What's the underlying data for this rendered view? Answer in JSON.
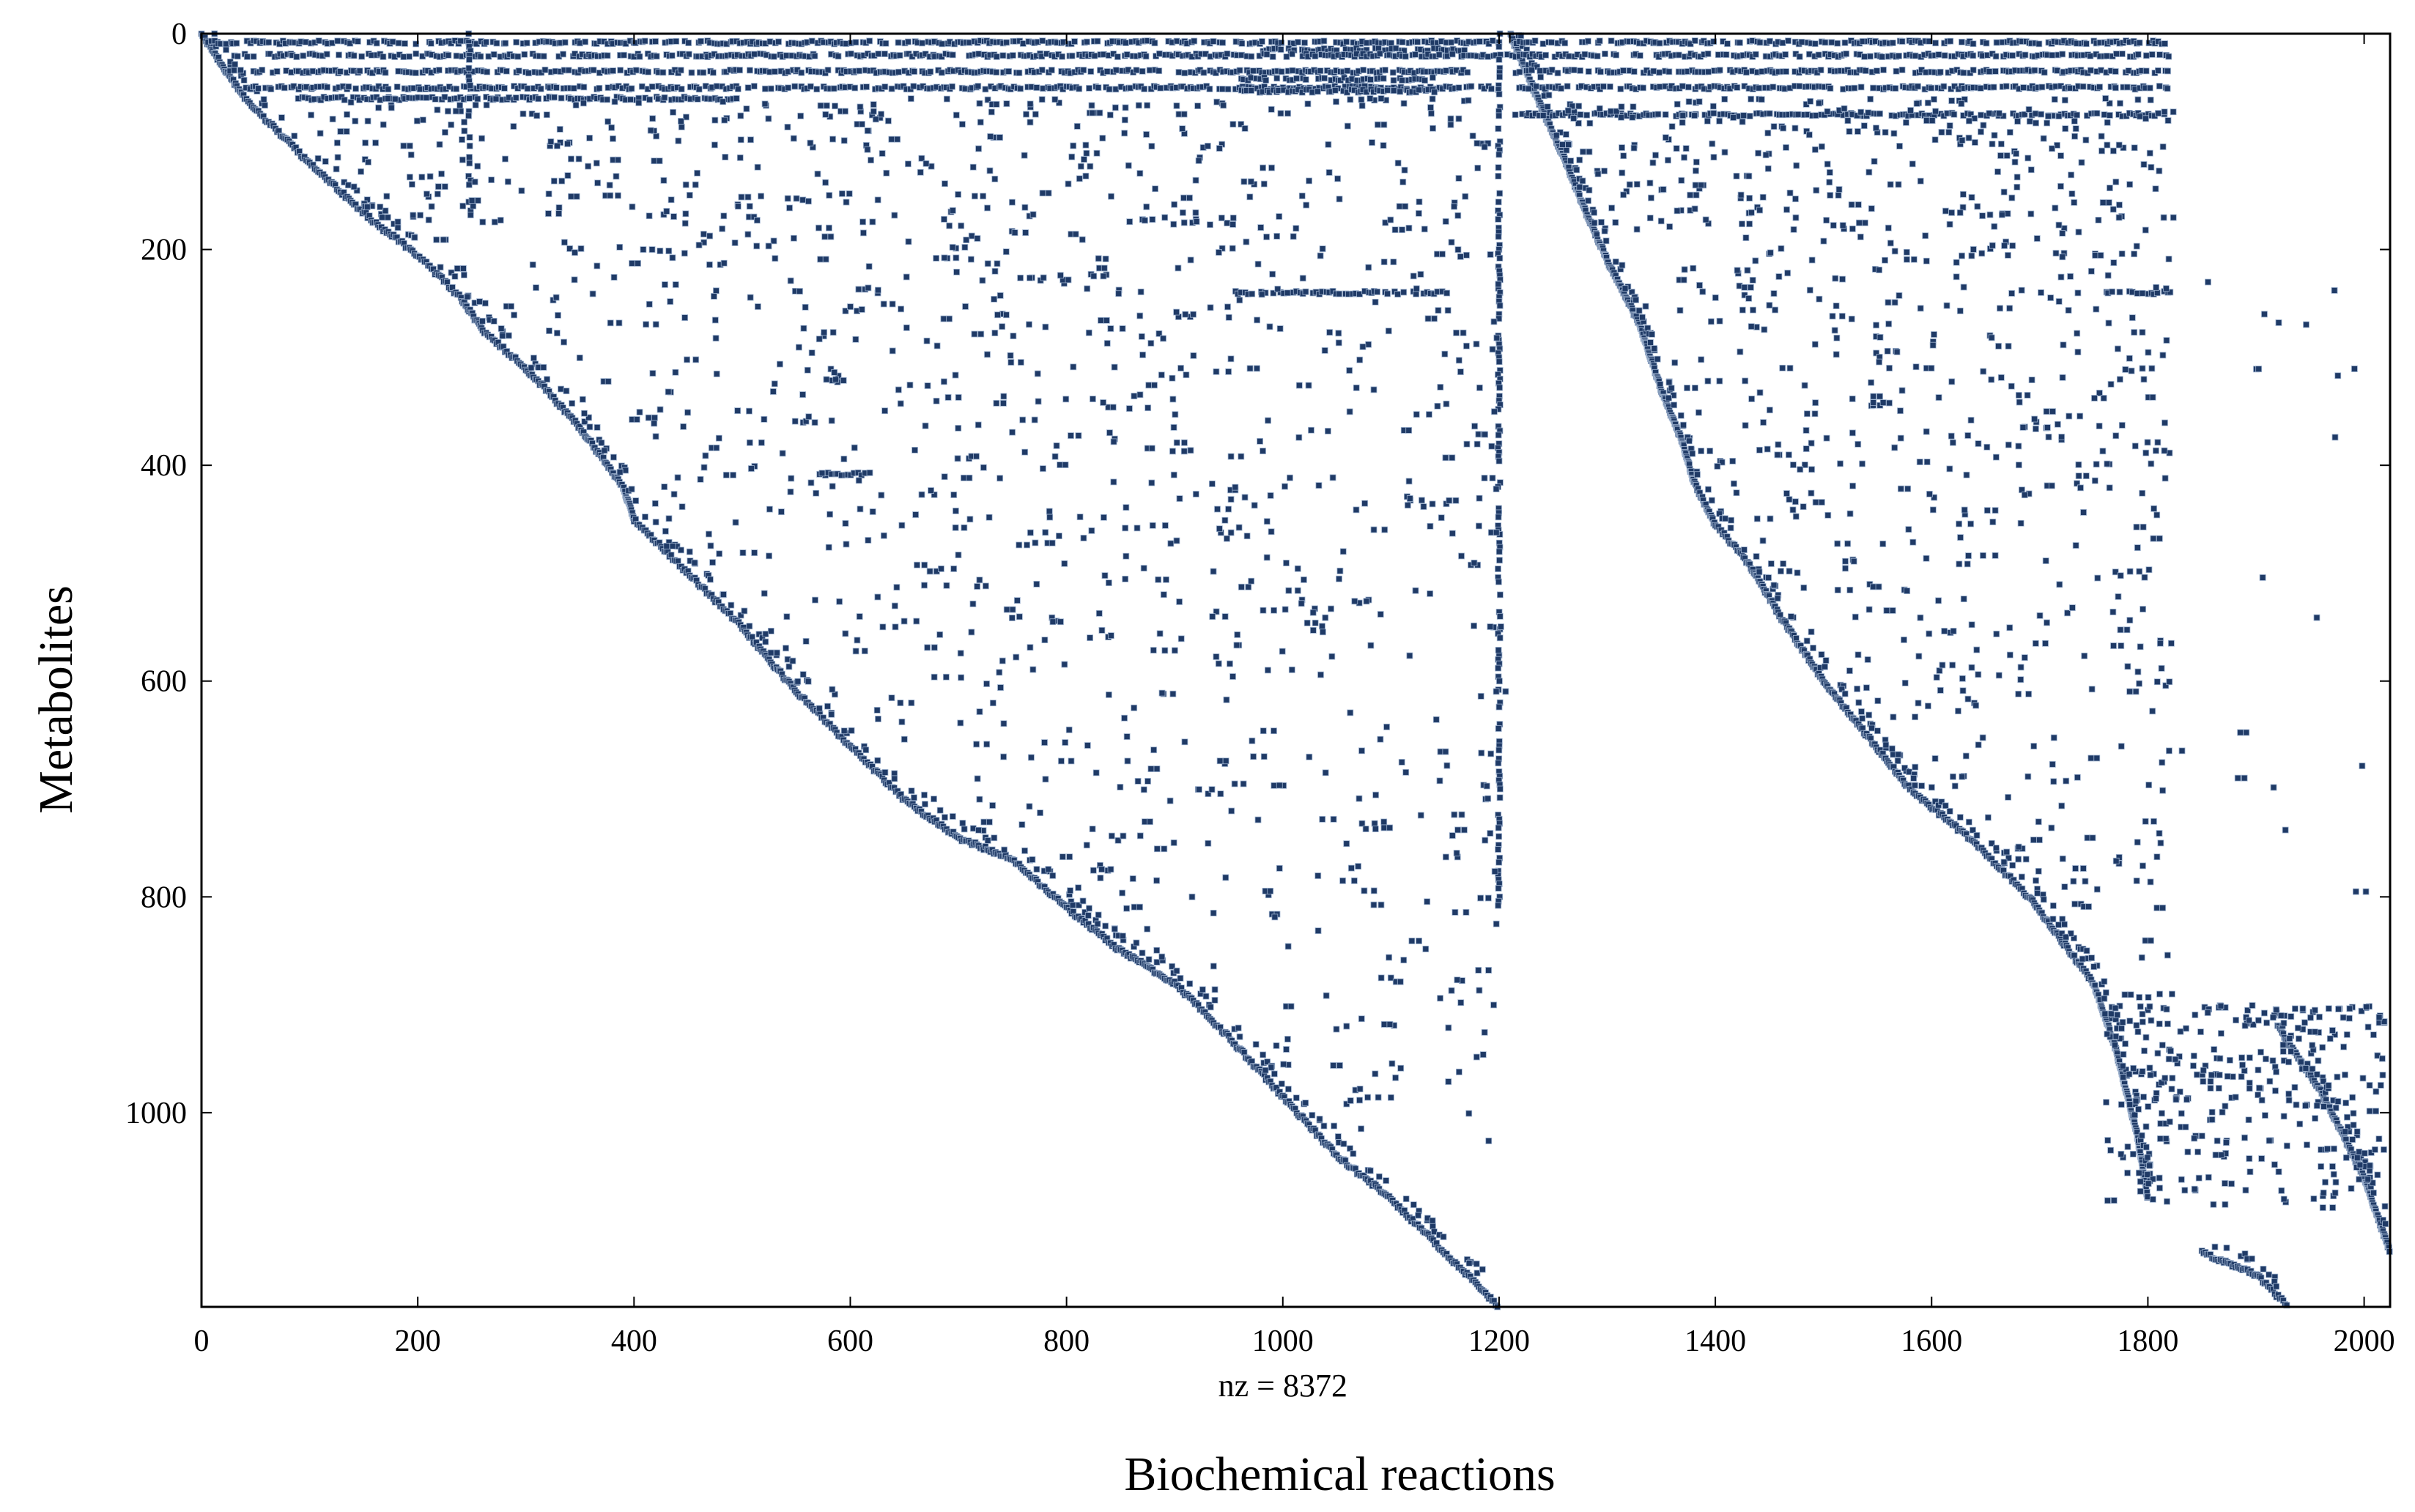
{
  "chart_data": {
    "type": "scatter",
    "subtype": "sparsity-pattern",
    "title": "",
    "xlabel": "Biochemical reactions",
    "ylabel": "Metabolites",
    "annotation": "nz = 8372",
    "xlim": [
      0,
      2024
    ],
    "ylim": [
      1180,
      0
    ],
    "y_axis_reversed": true,
    "xticks": [
      0,
      200,
      400,
      600,
      800,
      1000,
      1200,
      1400,
      1600,
      1800,
      2000
    ],
    "yticks": [
      0,
      200,
      400,
      600,
      800,
      1000
    ],
    "grid": false,
    "marker_color": "#1f3a66",
    "axis_color": "#000000",
    "diagonal_1": [
      [
        0,
        0
      ],
      [
        40,
        60
      ],
      [
        100,
        120
      ],
      [
        160,
        175
      ],
      [
        200,
        205
      ],
      [
        240,
        245
      ],
      [
        260,
        275
      ],
      [
        300,
        310
      ],
      [
        350,
        365
      ],
      [
        390,
        420
      ],
      [
        400,
        450
      ],
      [
        450,
        500
      ],
      [
        500,
        550
      ],
      [
        550,
        610
      ],
      [
        600,
        660
      ],
      [
        650,
        710
      ],
      [
        700,
        745
      ],
      [
        750,
        765
      ],
      [
        800,
        810
      ],
      [
        850,
        850
      ],
      [
        900,
        880
      ],
      [
        950,
        930
      ],
      [
        1000,
        985
      ],
      [
        1050,
        1040
      ],
      [
        1100,
        1080
      ],
      [
        1150,
        1130
      ],
      [
        1200,
        1180
      ]
    ],
    "diagonal_2": [
      [
        1210,
        0
      ],
      [
        1240,
        70
      ],
      [
        1260,
        115
      ],
      [
        1280,
        165
      ],
      [
        1300,
        210
      ],
      [
        1330,
        270
      ],
      [
        1350,
        330
      ],
      [
        1370,
        380
      ],
      [
        1380,
        415
      ],
      [
        1400,
        455
      ],
      [
        1430,
        490
      ],
      [
        1460,
        540
      ],
      [
        1500,
        600
      ],
      [
        1540,
        650
      ],
      [
        1580,
        700
      ],
      [
        1640,
        750
      ],
      [
        1690,
        800
      ],
      [
        1720,
        840
      ],
      [
        1750,
        880
      ],
      [
        1770,
        940
      ],
      [
        1790,
        1020
      ],
      [
        1800,
        1080
      ]
    ],
    "diagonal_3": [
      [
        1850,
        1130
      ],
      [
        1900,
        1150
      ],
      [
        1930,
        1180
      ]
    ],
    "diagonal_4": [
      [
        1920,
        920
      ],
      [
        1960,
        980
      ],
      [
        2000,
        1060
      ],
      [
        2024,
        1130
      ]
    ],
    "dense_rows": [
      {
        "y": 8,
        "x": [
          5,
          1200
        ]
      },
      {
        "y": 8,
        "x": [
          1215,
          1820
        ]
      },
      {
        "y": 15,
        "x": [
          980,
          1170
        ]
      },
      {
        "y": 20,
        "x": [
          30,
          1820
        ]
      },
      {
        "y": 35,
        "x": [
          20,
          1170
        ]
      },
      {
        "y": 35,
        "x": [
          1215,
          1820
        ]
      },
      {
        "y": 42,
        "x": [
          960,
          1140
        ]
      },
      {
        "y": 50,
        "x": [
          40,
          1200
        ]
      },
      {
        "y": 50,
        "x": [
          1215,
          1820
        ]
      },
      {
        "y": 53,
        "x": [
          960,
          1140
        ]
      },
      {
        "y": 60,
        "x": [
          80,
          500
        ]
      },
      {
        "y": 75,
        "x": [
          1215,
          1820
        ]
      },
      {
        "y": 240,
        "x": [
          955,
          1150
        ]
      },
      {
        "y": 240,
        "x": [
          1760,
          1820
        ]
      },
      {
        "y": 408,
        "x": [
          570,
          620
        ]
      }
    ],
    "dense_columns": [
      {
        "x": 248,
        "y": [
          0,
          170
        ]
      },
      {
        "x": 1200,
        "y": [
          0,
          810
        ]
      }
    ],
    "scatter_regions": [
      {
        "x": [
          100,
          1200
        ],
        "y": [
          60,
          1030
        ],
        "lower_bound": "diagonal_1",
        "count": 1100
      },
      {
        "x": [
          1240,
          1820
        ],
        "y": [
          60,
          1180
        ],
        "lower_bound": "diagonal_2",
        "count": 700
      },
      {
        "x": [
          1760,
          2020
        ],
        "y": [
          900,
          1090
        ],
        "count": 260
      },
      {
        "x": [
          1850,
          2000
        ],
        "y": [
          230,
          800
        ],
        "count": 18
      }
    ]
  }
}
